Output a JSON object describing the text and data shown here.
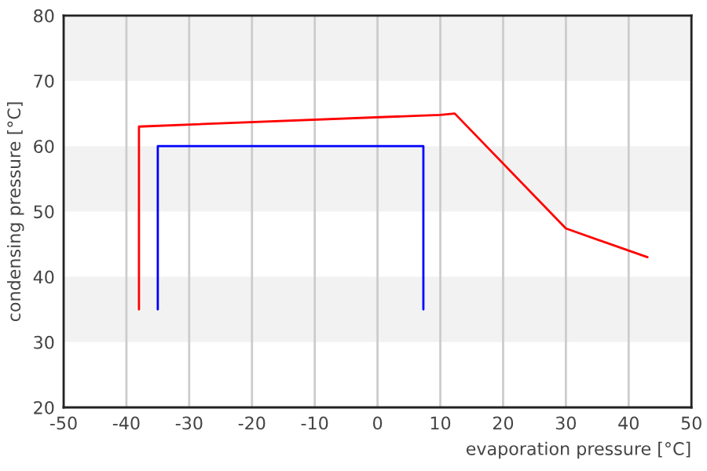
{
  "chart_data": {
    "type": "line",
    "xlabel": "evaporation pressure [°C]",
    "ylabel": "condensing pressure [°C]",
    "xlim": [
      -50,
      50
    ],
    "xticks": [
      -50,
      -40,
      -30,
      -20,
      -10,
      0,
      10,
      20,
      30,
      40,
      50
    ],
    "ylim": [
      20,
      80
    ],
    "yticks": [
      20,
      30,
      40,
      50,
      60,
      70,
      80
    ],
    "grid": "x",
    "legend": false,
    "line_style": "solid",
    "bands": [
      {
        "axis": "y",
        "from": 30,
        "to": 40,
        "color": "#f2f2f2"
      },
      {
        "axis": "y",
        "from": 50,
        "to": 60,
        "color": "#f2f2f2"
      },
      {
        "axis": "y",
        "from": 70,
        "to": 80,
        "color": "#f2f2f2"
      }
    ],
    "series": [
      {
        "color": "#ff0000",
        "x": [
          -38,
          -38,
          10,
          12.3,
          30,
          43
        ],
        "values": [
          35,
          63,
          64.8,
          65,
          47.4,
          43
        ]
      },
      {
        "color": "#0000ff",
        "x": [
          -35,
          -35,
          7.3,
          7.3
        ],
        "values": [
          35,
          60,
          60,
          35
        ]
      }
    ]
  }
}
